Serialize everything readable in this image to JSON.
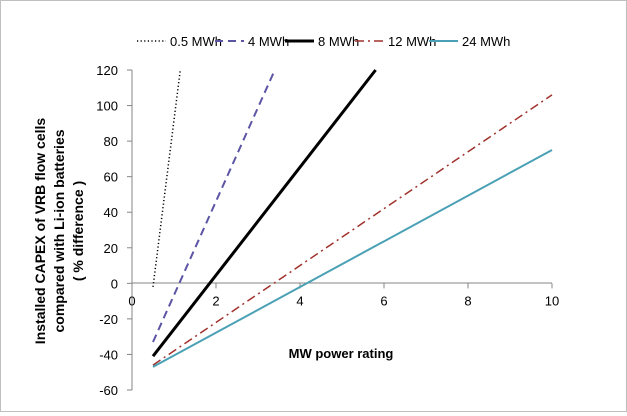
{
  "chart_data": {
    "type": "line",
    "title": "",
    "xlabel": "MW power rating",
    "ylabel_lines": [
      "Installed CAPEX of VRB flow cells",
      "compared with Li-ion batteries",
      "( % difference )"
    ],
    "xlim": [
      0,
      10
    ],
    "ylim": [
      -60,
      120
    ],
    "x_ticks": [
      "0",
      "2",
      "4",
      "6",
      "8",
      "10"
    ],
    "y_ticks": [
      "-60",
      "-40",
      "-20",
      "0",
      "20",
      "40",
      "60",
      "80",
      "100",
      "120"
    ],
    "grid": false,
    "legend_position": "top",
    "series": [
      {
        "name": "0.5 MWh",
        "color": "#000000",
        "style": "dotted",
        "x": [
          0.5,
          1.15
        ],
        "y": [
          -2,
          120
        ]
      },
      {
        "name": "4 MWh",
        "color": "#5c55a5",
        "style": "dashed",
        "x": [
          0.5,
          3.4
        ],
        "y": [
          -33,
          120
        ]
      },
      {
        "name": "8 MWh",
        "color": "#000000",
        "style": "solid-thick",
        "x": [
          0.5,
          5.8
        ],
        "y": [
          -41,
          120
        ]
      },
      {
        "name": "12 MWh",
        "color": "#a0312c",
        "style": "dash-dot",
        "x": [
          0.5,
          10
        ],
        "y": [
          -46,
          106
        ]
      },
      {
        "name": "24 MWh",
        "color": "#4aa0b5",
        "style": "solid",
        "x": [
          0.5,
          10
        ],
        "y": [
          -47,
          75
        ]
      }
    ]
  }
}
